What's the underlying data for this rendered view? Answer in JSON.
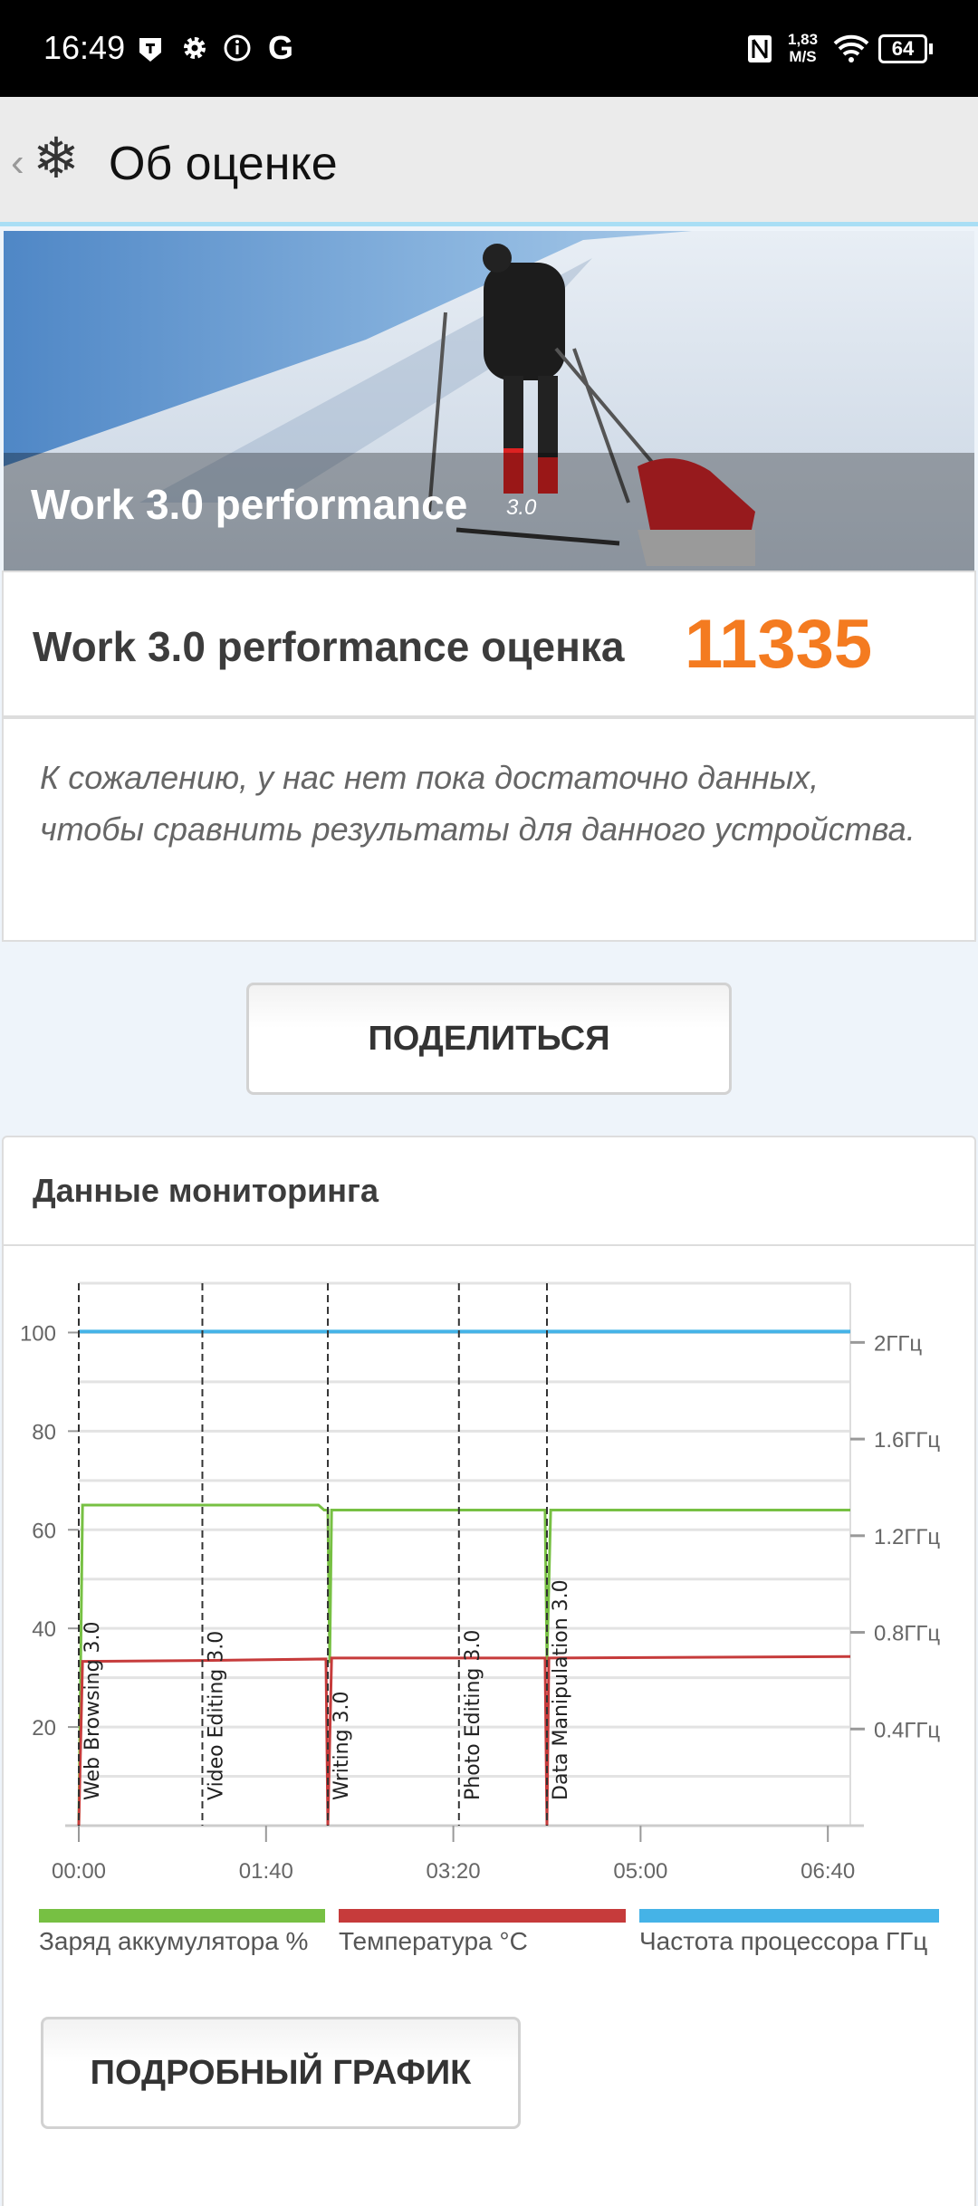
{
  "status_bar": {
    "time": "16:49",
    "net_speed_value": "1,83",
    "net_speed_unit": "M/S",
    "battery": "64",
    "icons": [
      "t-shield-icon",
      "gear-icon",
      "info-icon",
      "google-icon",
      "nfc-icon",
      "wifi-icon",
      "battery-icon"
    ]
  },
  "header": {
    "title": "Об оценке",
    "icons": [
      "back-chevron-icon",
      "snowflake-icon"
    ]
  },
  "hero": {
    "title": "Work 3.0 performance",
    "version": "3.0"
  },
  "score": {
    "label": "Work 3.0 performance оценка",
    "value": "11335",
    "color": "#f47b20"
  },
  "notice": "К сожалению, у нас нет пока достаточно данных, чтобы сравнить результаты для данного устройства.",
  "share_button": "ПОДЕЛИТЬСЯ",
  "monitoring": {
    "title": "Данные мониторинга",
    "detail_button": "ПОДРОБНЫЙ ГРАФИК"
  },
  "chart_data": {
    "type": "line",
    "x_unit": "mm:ss",
    "xlim": [
      0,
      412
    ],
    "x_ticks": [
      {
        "v": 0,
        "label": "00:00"
      },
      {
        "v": 100,
        "label": "01:40"
      },
      {
        "v": 200,
        "label": "03:20"
      },
      {
        "v": 300,
        "label": "05:00"
      },
      {
        "v": 400,
        "label": "06:40"
      }
    ],
    "ylim_left": [
      0,
      110
    ],
    "y_ticks_left": [
      {
        "v": 20,
        "label": "20"
      },
      {
        "v": 40,
        "label": "40"
      },
      {
        "v": 60,
        "label": "60"
      },
      {
        "v": 80,
        "label": "80"
      },
      {
        "v": 100,
        "label": "100"
      }
    ],
    "ylim_right": [
      0,
      2.245
    ],
    "y_ticks_right": [
      {
        "v": 0.4,
        "label": "0.4ГГц"
      },
      {
        "v": 0.8,
        "label": "0.8ГГц"
      },
      {
        "v": 1.2,
        "label": "1.2ГГц"
      },
      {
        "v": 1.6,
        "label": "1.6ГГц"
      },
      {
        "v": 2.0,
        "label": "2ГГц"
      }
    ],
    "grid": true,
    "markers": [
      {
        "x": 0,
        "label": "Web Browsing 3.0"
      },
      {
        "x": 66,
        "label": "Video Editing 3.0"
      },
      {
        "x": 133,
        "label": "Writing 3.0"
      },
      {
        "x": 203,
        "label": "Photo Editing 3.0"
      },
      {
        "x": 250,
        "label": "Data Manipulation 3.0"
      }
    ],
    "series": [
      {
        "name": "Заряд аккумулятора %",
        "axis": "left",
        "color": "#77c043",
        "points": [
          [
            0,
            0
          ],
          [
            2,
            65
          ],
          [
            128,
            65
          ],
          [
            131,
            64
          ],
          [
            133,
            64
          ],
          [
            134,
            33
          ],
          [
            135,
            64
          ],
          [
            249,
            64
          ],
          [
            250,
            33
          ],
          [
            252,
            64
          ],
          [
            412,
            64
          ]
        ]
      },
      {
        "name": "Температура °C",
        "axis": "left",
        "color": "#c63b3b",
        "points": [
          [
            0,
            0
          ],
          [
            2,
            33.3
          ],
          [
            66,
            33.5
          ],
          [
            132,
            33.8
          ],
          [
            133,
            0
          ],
          [
            135,
            34
          ],
          [
            249,
            34
          ],
          [
            250,
            0
          ],
          [
            251,
            34
          ],
          [
            412,
            34.3
          ]
        ]
      },
      {
        "name": "Частота процессора ГГц",
        "axis": "right",
        "color": "#45b3e7",
        "points": [
          [
            0,
            2.045
          ],
          [
            412,
            2.045
          ]
        ]
      }
    ],
    "legend_position": "bottom"
  }
}
